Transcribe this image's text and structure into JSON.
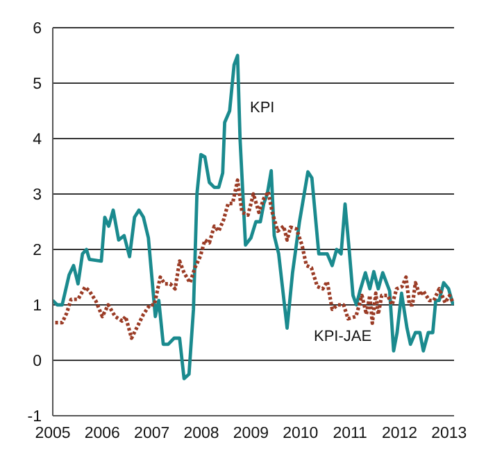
{
  "chart_data": {
    "type": "line",
    "xlim": [
      2005,
      2013.1
    ],
    "xticks": [
      2005,
      2006,
      2007,
      2008,
      2009,
      2010,
      2011,
      2012,
      2013
    ],
    "ylim": [
      -1,
      6
    ],
    "yticks": [
      -1,
      0,
      1,
      2,
      3,
      4,
      5,
      6
    ],
    "grid": "y",
    "series": [
      {
        "name": "KPI",
        "color": "#1a8a8e",
        "line_style": "solid",
        "x": [
          2005.0,
          2005.09,
          2005.19,
          2005.33,
          2005.42,
          2005.51,
          2005.6,
          2005.68,
          2005.74,
          2005.98,
          2006.05,
          2006.13,
          2006.22,
          2006.33,
          2006.44,
          2006.55,
          2006.65,
          2006.74,
          2006.83,
          2006.93,
          2007.0,
          2007.07,
          2007.14,
          2007.23,
          2007.33,
          2007.45,
          2007.56,
          2007.65,
          2007.75,
          2007.84,
          2007.91,
          2007.99,
          2008.07,
          2008.16,
          2008.26,
          2008.35,
          2008.43,
          2008.47,
          2008.57,
          2008.66,
          2008.73,
          2008.78,
          2008.89,
          2009.0,
          2009.1,
          2009.19,
          2009.26,
          2009.33,
          2009.41,
          2009.47,
          2009.56,
          2009.73,
          2009.84,
          2009.98,
          2010.15,
          2010.23,
          2010.37,
          2010.54,
          2010.64,
          2010.73,
          2010.82,
          2010.9,
          2010.99,
          2011.06,
          2011.13,
          2011.2,
          2011.31,
          2011.4,
          2011.48,
          2011.57,
          2011.66,
          2011.8,
          2011.88,
          2011.95,
          2012.04,
          2012.15,
          2012.22,
          2012.32,
          2012.41,
          2012.48,
          2012.58,
          2012.67,
          2012.73,
          2012.8,
          2012.89,
          2012.99,
          2013.08
        ],
        "values": [
          1.08,
          1.0,
          1.0,
          1.54,
          1.71,
          1.38,
          1.92,
          2.0,
          1.82,
          1.79,
          2.58,
          2.42,
          2.71,
          2.17,
          2.25,
          1.87,
          2.58,
          2.71,
          2.58,
          2.21,
          1.5,
          0.79,
          1.08,
          0.29,
          0.29,
          0.4,
          0.4,
          -0.33,
          -0.25,
          0.92,
          3.0,
          3.71,
          3.67,
          3.21,
          3.12,
          3.12,
          3.38,
          4.29,
          4.5,
          5.33,
          5.5,
          4.0,
          2.08,
          2.21,
          2.5,
          2.5,
          2.83,
          3.0,
          3.42,
          2.25,
          1.92,
          0.58,
          1.58,
          2.5,
          3.4,
          3.29,
          1.92,
          1.92,
          1.71,
          2.0,
          1.92,
          2.82,
          1.92,
          1.17,
          1.0,
          1.25,
          1.58,
          1.29,
          1.6,
          1.29,
          1.58,
          1.25,
          0.17,
          0.5,
          1.21,
          0.58,
          0.29,
          0.5,
          0.5,
          0.17,
          0.5,
          0.5,
          1.08,
          1.08,
          1.4,
          1.29,
          1.0
        ]
      },
      {
        "name": "KPI-JAE",
        "color": "#9a3b25",
        "line_style": "dotted",
        "x": [
          2005.05,
          2005.19,
          2005.28,
          2005.37,
          2005.51,
          2005.65,
          2005.74,
          2005.87,
          2006.0,
          2006.12,
          2006.26,
          2006.4,
          2006.47,
          2006.59,
          2006.72,
          2006.83,
          2006.96,
          2007.05,
          2007.17,
          2007.26,
          2007.37,
          2007.47,
          2007.56,
          2007.65,
          2007.77,
          2007.87,
          2007.98,
          2008.07,
          2008.16,
          2008.26,
          2008.35,
          2008.45,
          2008.54,
          2008.63,
          2008.73,
          2008.82,
          2008.94,
          2009.05,
          2009.16,
          2009.26,
          2009.35,
          2009.43,
          2009.54,
          2009.66,
          2009.73,
          2009.8,
          2009.92,
          2010.03,
          2010.12,
          2010.22,
          2010.34,
          2010.45,
          2010.54,
          2010.64,
          2010.75,
          2010.87,
          2010.96,
          2011.12,
          2011.24,
          2011.33,
          2011.4,
          2011.45,
          2011.52,
          2011.57,
          2011.64,
          2011.76,
          2011.85,
          2011.94,
          2012.05,
          2012.13,
          2012.2,
          2012.26,
          2012.32,
          2012.41,
          2012.48,
          2012.6,
          2012.69,
          2012.8,
          2012.92,
          2013.01,
          2013.08
        ],
        "values": [
          0.68,
          0.68,
          0.85,
          1.1,
          1.1,
          1.32,
          1.25,
          1.07,
          0.79,
          1.0,
          0.79,
          0.71,
          0.79,
          0.4,
          0.63,
          0.83,
          1.0,
          1.0,
          1.5,
          1.38,
          1.38,
          1.29,
          1.79,
          1.58,
          1.4,
          1.67,
          1.88,
          2.17,
          2.12,
          2.42,
          2.33,
          2.54,
          2.83,
          2.83,
          3.25,
          2.67,
          2.62,
          3.0,
          2.67,
          2.92,
          3.04,
          2.67,
          2.33,
          2.42,
          2.17,
          2.4,
          2.37,
          2.08,
          1.71,
          1.67,
          1.33,
          1.29,
          1.42,
          0.92,
          1.0,
          1.0,
          0.75,
          0.79,
          1.17,
          0.83,
          1.17,
          0.67,
          1.21,
          0.83,
          1.17,
          1.17,
          1.0,
          1.29,
          1.33,
          1.5,
          1.0,
          1.0,
          1.4,
          1.17,
          1.25,
          1.08,
          1.08,
          1.29,
          1.04,
          1.17,
          1.04
        ]
      }
    ]
  }
}
